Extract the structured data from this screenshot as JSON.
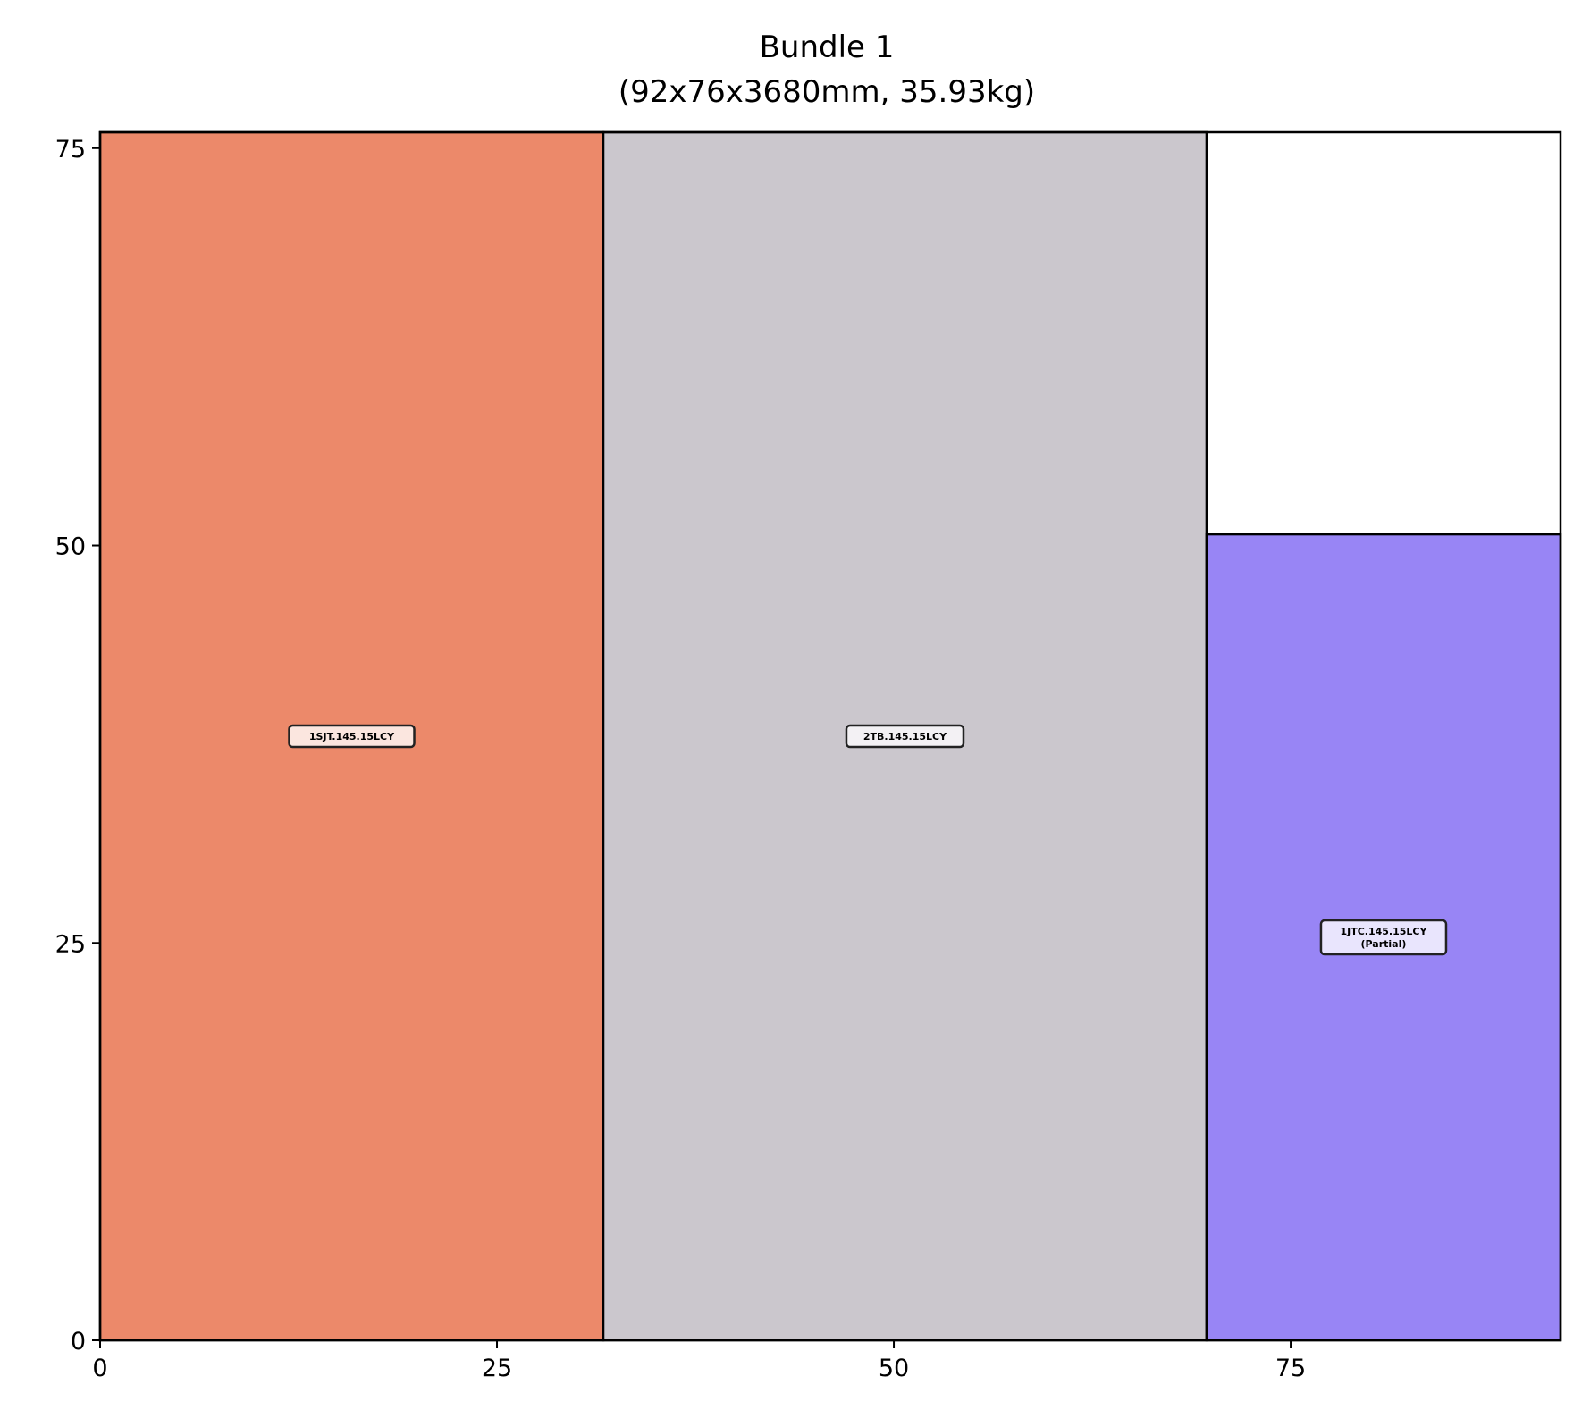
{
  "chart_data": {
    "type": "rectangle-packing",
    "title": "Bundle 1",
    "subtitle": "(92x76x3680mm, 35.93kg)",
    "xlim": [
      0,
      92
    ],
    "ylim": [
      0,
      76
    ],
    "xticks": [
      0,
      25,
      50,
      75
    ],
    "yticks": [
      0,
      25,
      50,
      75
    ],
    "grid": false,
    "rectangles": [
      {
        "label": "1SJT.145.15LCY",
        "x0": 0,
        "x1": 31.7,
        "y0": 0,
        "y1": 76,
        "fill": "#ec896a",
        "label_bg": "#fbe6df"
      },
      {
        "label": "2TB.145.15LCY",
        "x0": 31.7,
        "x1": 69.7,
        "y0": 0,
        "y1": 76,
        "fill": "#cbc7cd",
        "label_bg": "#f3f1f4"
      },
      {
        "label": "1JTC.145.15LCY",
        "sublabel": "(Partial)",
        "x0": 69.7,
        "x1": 92,
        "y0": 0,
        "y1": 50.7,
        "fill": "#9885f5",
        "label_bg": "#e9e5fd"
      }
    ]
  }
}
